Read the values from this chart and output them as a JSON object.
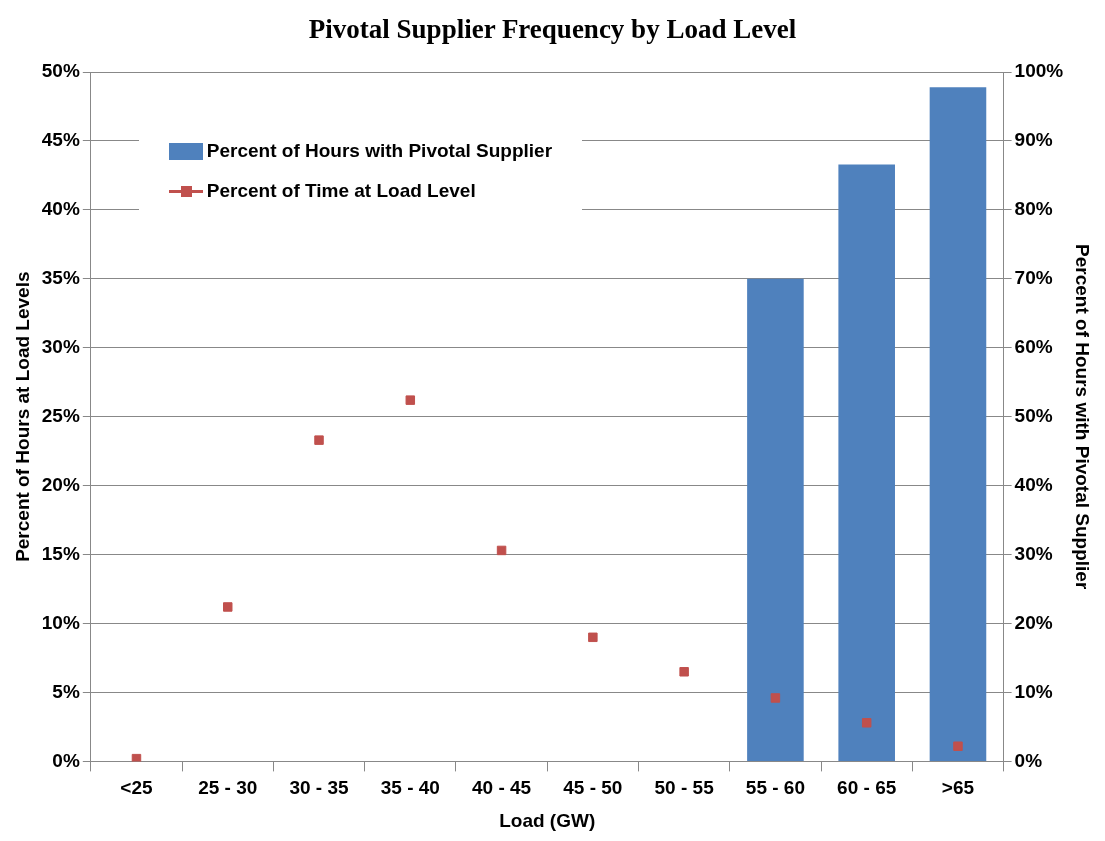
{
  "chart_data": {
    "type": "bar",
    "title": "Pivotal Supplier Frequency by Load Level",
    "xlabel": "Load (GW)",
    "ylabel": "Percent of Hours at Load Levels",
    "y2label": "Percent of Hours with Pivotal Supplier",
    "categories": [
      "<25",
      "25 - 30",
      "30 - 35",
      "35 - 40",
      "40 - 45",
      "45 - 50",
      "50 - 55",
      "55 - 60",
      "60 - 65",
      ">65"
    ],
    "series": [
      {
        "name": "Percent of Hours with Pivotal Supplier",
        "axis": "y2",
        "color": "#4f81bd",
        "values": [
          0,
          0,
          0,
          0,
          0,
          0,
          0,
          70,
          86.6,
          97.8
        ]
      },
      {
        "name": "Percent of Time at Load Level",
        "type": "scatter",
        "marker": "square",
        "color": "#c0504d",
        "x": [
          "<25",
          "25 - 30",
          "30 - 35",
          "35 - 40",
          "40 - 45",
          "45 - 50",
          "50 - 55",
          "55 - 60",
          "60 - 65",
          ">65"
        ],
        "values": [
          0.2,
          11.2,
          23.3,
          26.2,
          15.3,
          9,
          6.5,
          4.6,
          2.8,
          1.1
        ]
      }
    ],
    "ylim": [
      0,
      50
    ],
    "yticks": [
      {
        "value": 0,
        "label": "0%"
      },
      {
        "value": 5,
        "label": "5%"
      },
      {
        "value": 10,
        "label": "10%"
      },
      {
        "value": 15,
        "label": "15%"
      },
      {
        "value": 20,
        "label": "20%"
      },
      {
        "value": 25,
        "label": "25%"
      },
      {
        "value": 30,
        "label": "30%"
      },
      {
        "value": 35,
        "label": "35%"
      },
      {
        "value": 40,
        "label": "40%"
      },
      {
        "value": 45,
        "label": "45%"
      },
      {
        "value": 50,
        "label": "50%"
      }
    ],
    "y2lim": [
      0,
      100
    ],
    "y2ticks": [
      {
        "value": 0,
        "label": "0%"
      },
      {
        "value": 10,
        "label": "10%"
      },
      {
        "value": 20,
        "label": "20%"
      },
      {
        "value": 30,
        "label": "30%"
      },
      {
        "value": 40,
        "label": "40%"
      },
      {
        "value": 50,
        "label": "50%"
      },
      {
        "value": 60,
        "label": "60%"
      },
      {
        "value": 70,
        "label": "70%"
      },
      {
        "value": 80,
        "label": "80%"
      },
      {
        "value": 90,
        "label": "90%"
      },
      {
        "value": 100,
        "label": "100%"
      }
    ],
    "grid": "y",
    "legend": "top left"
  }
}
